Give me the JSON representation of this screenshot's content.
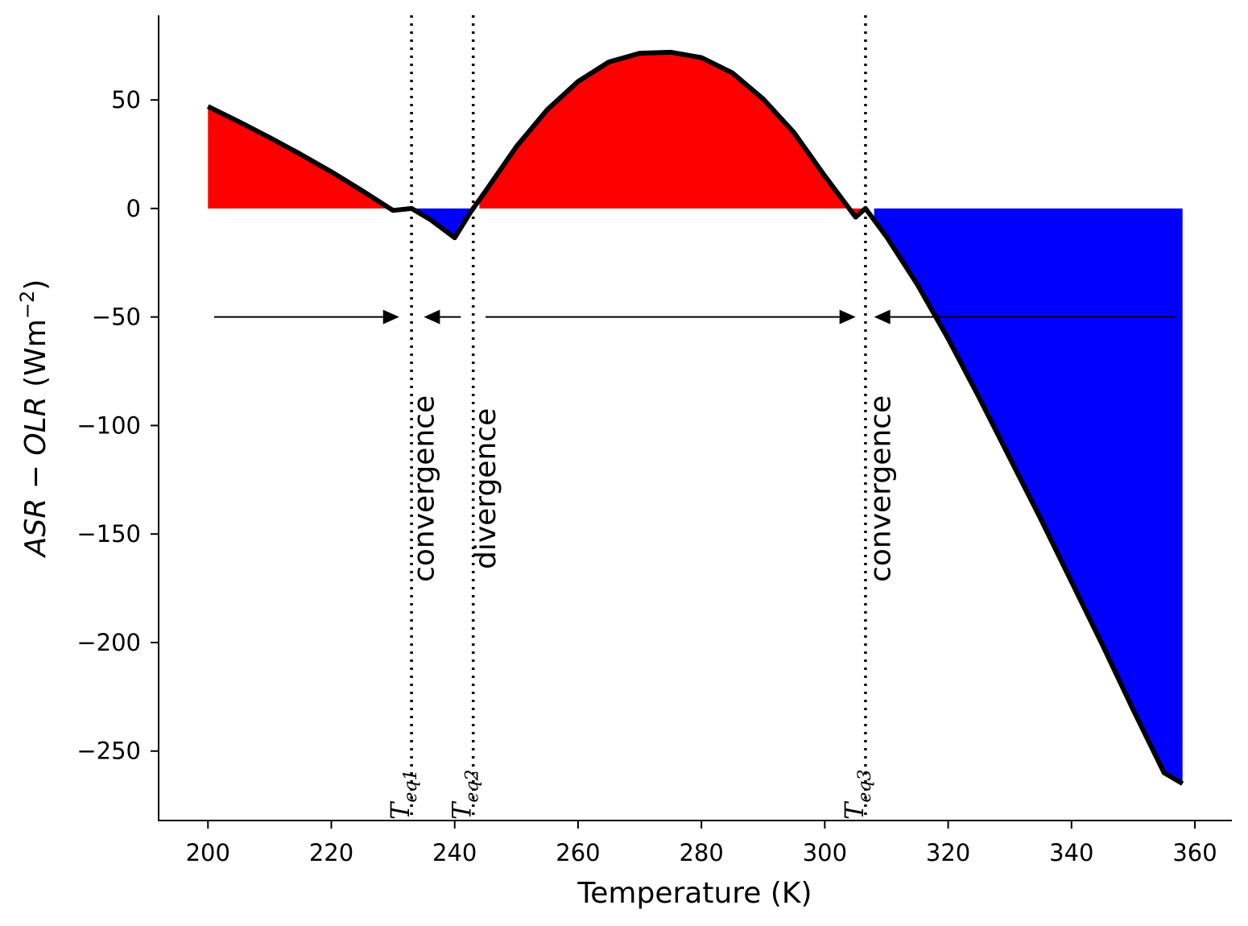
{
  "chart_data": {
    "type": "line",
    "title": "",
    "xlabel": "Temperature (K)",
    "ylabel_parts": {
      "var1": "ASR",
      "minus": " − ",
      "var2": "OLR",
      "unit_prefix": " (Wm",
      "unit_exp": "−2",
      "unit_suffix": ")"
    },
    "xlim": [
      192,
      366
    ],
    "ylim": [
      -282,
      89
    ],
    "xticks": [
      200,
      220,
      240,
      260,
      280,
      300,
      320,
      340,
      360
    ],
    "yticks": [
      50,
      0,
      -50,
      -100,
      -150,
      -200,
      -250
    ],
    "ytick_labels": [
      "50",
      "0",
      "−50",
      "−100",
      "−150",
      "−200",
      "−250"
    ],
    "series": [
      {
        "name": "ASR - OLR",
        "color": "#000000",
        "x": [
          200,
          205,
          210,
          215,
          220,
          225,
          230,
          233,
          236,
          240,
          242.5,
          245,
          250,
          255,
          260,
          265,
          270,
          275,
          280,
          285,
          290,
          295,
          300,
          305,
          306.6,
          310,
          315,
          320,
          325,
          330,
          335,
          340,
          345,
          350,
          355,
          358
        ],
        "y": [
          47,
          40,
          32.7,
          25,
          16.9,
          8.2,
          -0.9,
          0,
          -5,
          -13.5,
          -2,
          8,
          28.5,
          45.5,
          58.5,
          67.5,
          71.5,
          72,
          69.5,
          62.5,
          50.5,
          35,
          15,
          -4,
          0,
          -13,
          -35,
          -60,
          -87,
          -115,
          -143,
          -172,
          -201,
          -231,
          -260,
          -265
        ]
      }
    ],
    "fill_positive_color": "#ff0000",
    "fill_negative_color": "#0000ff",
    "fill_segments": [
      {
        "x": [
          200,
          233
        ],
        "sign": "positive"
      },
      {
        "x": [
          233,
          242.5
        ],
        "sign": "negative"
      },
      {
        "x": [
          244,
          306.6
        ],
        "sign": "positive"
      },
      {
        "x": [
          308,
          358
        ],
        "sign": "negative"
      }
    ],
    "equilibria": [
      {
        "name": "T",
        "sub": "eq1",
        "x": 233
      },
      {
        "name": "T",
        "sub": "eq2",
        "x": 243
      },
      {
        "name": "T",
        "sub": "eq3",
        "x": 306.6
      }
    ],
    "arrows": [
      {
        "from": 201,
        "to": 231,
        "y": -50
      },
      {
        "from": 241,
        "to": 235,
        "y": -50
      },
      {
        "from": 245,
        "to": 305,
        "y": -50
      },
      {
        "from": 357,
        "to": 308,
        "y": -50
      }
    ],
    "annotations": [
      {
        "text": "convergence",
        "x": 235,
        "y": -128
      },
      {
        "text": "divergence",
        "x": 245,
        "y": -128
      },
      {
        "text": "convergence",
        "x": 309,
        "y": -128
      }
    ]
  }
}
